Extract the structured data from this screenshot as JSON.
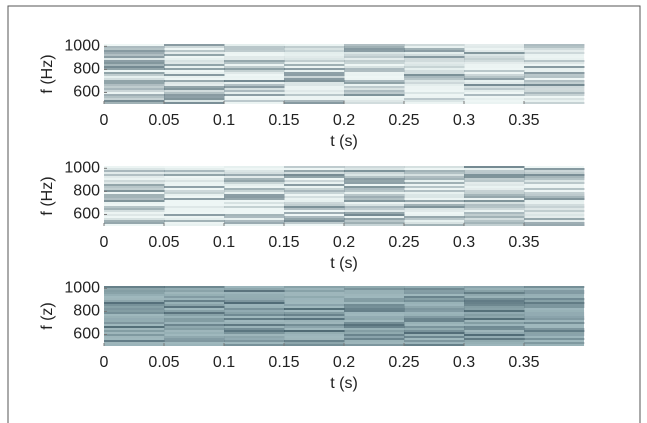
{
  "chart_data": [
    {
      "type": "heatmap",
      "xlabel": "t (s)",
      "ylabel": "f (Hz)",
      "xlim": [
        0,
        0.4
      ],
      "ylim": [
        500,
        1020
      ],
      "xticks": [
        0,
        0.05,
        0.1,
        0.15,
        0.2,
        0.25,
        0.3,
        0.35
      ],
      "yticks": [
        600,
        800,
        1000
      ],
      "colors": [
        "#eef6f5",
        "#3f5a66"
      ]
    },
    {
      "type": "heatmap",
      "xlabel": "t (s)",
      "ylabel": "f (Hz)",
      "xlim": [
        0,
        0.4
      ],
      "ylim": [
        500,
        1020
      ],
      "xticks": [
        0,
        0.05,
        0.1,
        0.15,
        0.2,
        0.25,
        0.3,
        0.35
      ],
      "yticks": [
        600,
        800,
        1000
      ],
      "colors": [
        "#eef6f5",
        "#3f5a66"
      ]
    },
    {
      "type": "heatmap",
      "xlabel": "t (s)",
      "ylabel": "f (z)",
      "xlim": [
        0,
        0.4
      ],
      "ylim": [
        500,
        1020
      ],
      "xticks": [
        0,
        0.05,
        0.1,
        0.15,
        0.2,
        0.25,
        0.3,
        0.35
      ],
      "yticks": [
        600,
        800,
        1000
      ],
      "colors": [
        "#9fb8bd",
        "#2f4a57"
      ]
    }
  ]
}
